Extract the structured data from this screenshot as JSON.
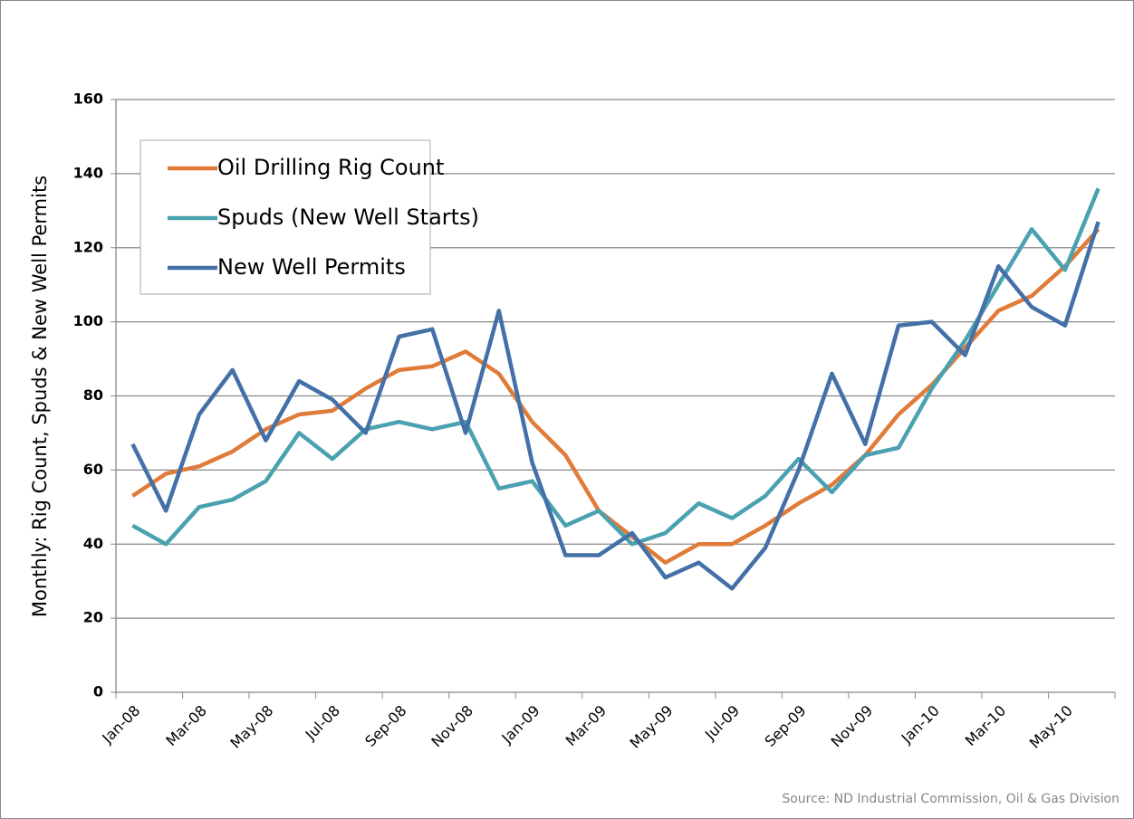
{
  "chart_data": {
    "type": "line",
    "y_label": "Monthly: Rig Count, Spuds & New Well  Permits",
    "source": "Source: ND  Industrial Commission, Oil & Gas Division",
    "categories": [
      "Jan-08",
      null,
      "Mar-08",
      null,
      "May-08",
      null,
      "Jul-08",
      null,
      "Sep-08",
      null,
      "Nov-08",
      null,
      "Jan-09",
      null,
      "Mar-09",
      null,
      "May-09",
      null,
      "Jul-09",
      null,
      "Sep-09",
      null,
      "Nov-09",
      null,
      "Jan-10",
      null,
      "Mar-10",
      null,
      "May-10",
      null
    ],
    "series": [
      {
        "name": "Oil Drilling Rig Count",
        "color": "#e07b39",
        "values": [
          53,
          59,
          61,
          65,
          71,
          75,
          76,
          82,
          87,
          88,
          92,
          86,
          73,
          64,
          49,
          42,
          35,
          40,
          40,
          45,
          51,
          56,
          64,
          75,
          83,
          93,
          103,
          107,
          115,
          125
        ]
      },
      {
        "name": "Spuds (New Well Starts)",
        "color": "#4aa1b0",
        "values": [
          45,
          40,
          50,
          52,
          57,
          70,
          63,
          71,
          73,
          71,
          73,
          55,
          57,
          45,
          49,
          40,
          43,
          51,
          47,
          53,
          63,
          54,
          64,
          66,
          82,
          95,
          110,
          125,
          114,
          136
        ]
      },
      {
        "name": "New Well Permits",
        "color": "#4470a8",
        "values": [
          67,
          49,
          75,
          87,
          68,
          84,
          79,
          70,
          96,
          98,
          70,
          103,
          62,
          37,
          37,
          43,
          31,
          35,
          28,
          39,
          60,
          86,
          67,
          99,
          100,
          91,
          115,
          104,
          99,
          127
        ]
      }
    ],
    "ylim": [
      0,
      160
    ],
    "yticks": [
      0,
      20,
      40,
      60,
      80,
      100,
      120,
      140,
      160
    ],
    "grid": true,
    "legend": "upper left"
  }
}
